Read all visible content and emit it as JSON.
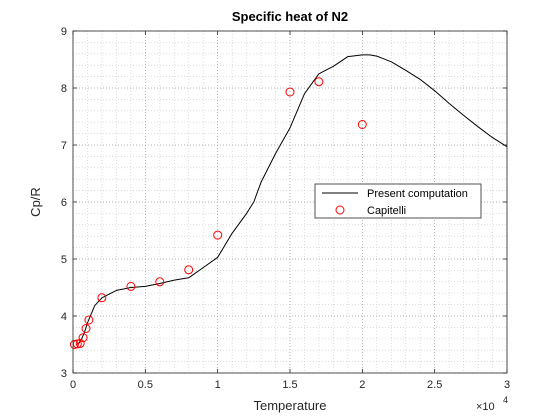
{
  "chart_data": {
    "type": "line",
    "title": "Specific heat of N2",
    "xlabel": "Temperature",
    "ylabel": "Cp/R",
    "x_exponent_label": "×10",
    "x_exponent_power": "4",
    "xlim": [
      0,
      30000
    ],
    "ylim": [
      3,
      9
    ],
    "xticks": [
      0,
      5000,
      10000,
      15000,
      20000,
      25000,
      30000
    ],
    "xtick_labels": [
      "0",
      "0.5",
      "1",
      "1.5",
      "2",
      "2.5",
      "3"
    ],
    "yticks": [
      3,
      4,
      5,
      6,
      7,
      8,
      9
    ],
    "ytick_labels": [
      "3",
      "4",
      "5",
      "6",
      "7",
      "8",
      "9"
    ],
    "grid": "minor dotted",
    "legend_position": "right",
    "series": [
      {
        "name": "Present computation",
        "color": "#000000",
        "style": "line",
        "x": [
          200,
          400,
          600,
          800,
          1000,
          1500,
          2000,
          3000,
          4000,
          5000,
          6000,
          7000,
          8000,
          9000,
          10000,
          11000,
          12000,
          12500,
          13000,
          14000,
          15000,
          16000,
          17000,
          18000,
          19000,
          20000,
          20500,
          21000,
          22000,
          23000,
          24000,
          25000,
          26000,
          27000,
          28000,
          29000,
          30000
        ],
        "y": [
          3.5,
          3.52,
          3.6,
          3.72,
          3.88,
          4.18,
          4.32,
          4.45,
          4.5,
          4.52,
          4.57,
          4.63,
          4.67,
          4.85,
          5.03,
          5.45,
          5.8,
          6.0,
          6.35,
          6.85,
          7.3,
          7.9,
          8.25,
          8.38,
          8.55,
          8.58,
          8.58,
          8.56,
          8.46,
          8.31,
          8.15,
          7.95,
          7.73,
          7.52,
          7.32,
          7.13,
          6.97
        ]
      },
      {
        "name": "Capitelli",
        "color": "#ff0000",
        "style": "circle-markers",
        "x": [
          100,
          300,
          500,
          700,
          900,
          1100,
          2000,
          4000,
          6000,
          8000,
          10000,
          15000,
          17000,
          20000
        ],
        "y": [
          3.5,
          3.51,
          3.52,
          3.62,
          3.78,
          3.93,
          4.32,
          4.52,
          4.6,
          4.81,
          5.42,
          7.93,
          8.11,
          7.36
        ]
      }
    ]
  }
}
